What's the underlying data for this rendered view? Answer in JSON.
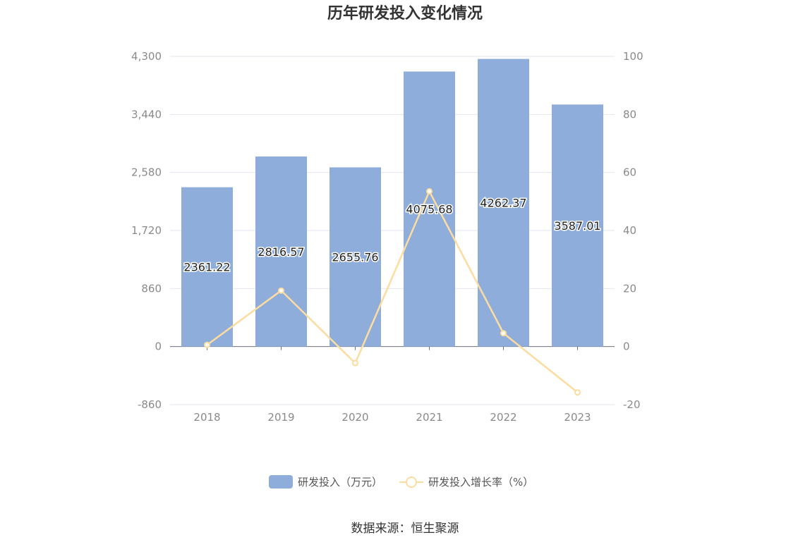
{
  "chart_data": {
    "type": "bar",
    "title": "历年研发投入变化情况",
    "categories": [
      "2018",
      "2019",
      "2020",
      "2021",
      "2022",
      "2023"
    ],
    "series": [
      {
        "name": "研发投入（万元）",
        "type": "bar",
        "axis": "left",
        "color": "#8eaddb",
        "values": [
          2361.22,
          2816.57,
          2655.76,
          4075.68,
          4262.37,
          3587.01
        ],
        "labels": [
          "2361.22",
          "2816.57",
          "2655.76",
          "4075.68",
          "4262.37",
          "3587.01"
        ]
      },
      {
        "name": "研发投入增长率（%）",
        "type": "line",
        "axis": "right",
        "color": "#fddca0",
        "values": [
          0.6,
          19.3,
          -5.7,
          53.5,
          4.6,
          -15.8
        ]
      }
    ],
    "y_left": {
      "ticks": [
        4300,
        3440,
        2580,
        1720,
        860,
        0,
        -860
      ],
      "tick_labels": [
        "4,300",
        "3,440",
        "2,580",
        "1,720",
        "860",
        "0",
        "-860"
      ],
      "ylim": [
        -860,
        4300
      ]
    },
    "y_right": {
      "ticks": [
        100,
        80,
        60,
        40,
        20,
        0,
        -20
      ],
      "tick_labels": [
        "100",
        "80",
        "60",
        "40",
        "20",
        "0",
        "-20"
      ],
      "ylim": [
        -20,
        100
      ]
    },
    "grid": true,
    "legend": "bottom-center"
  },
  "source": "数据来源：恒生聚源"
}
